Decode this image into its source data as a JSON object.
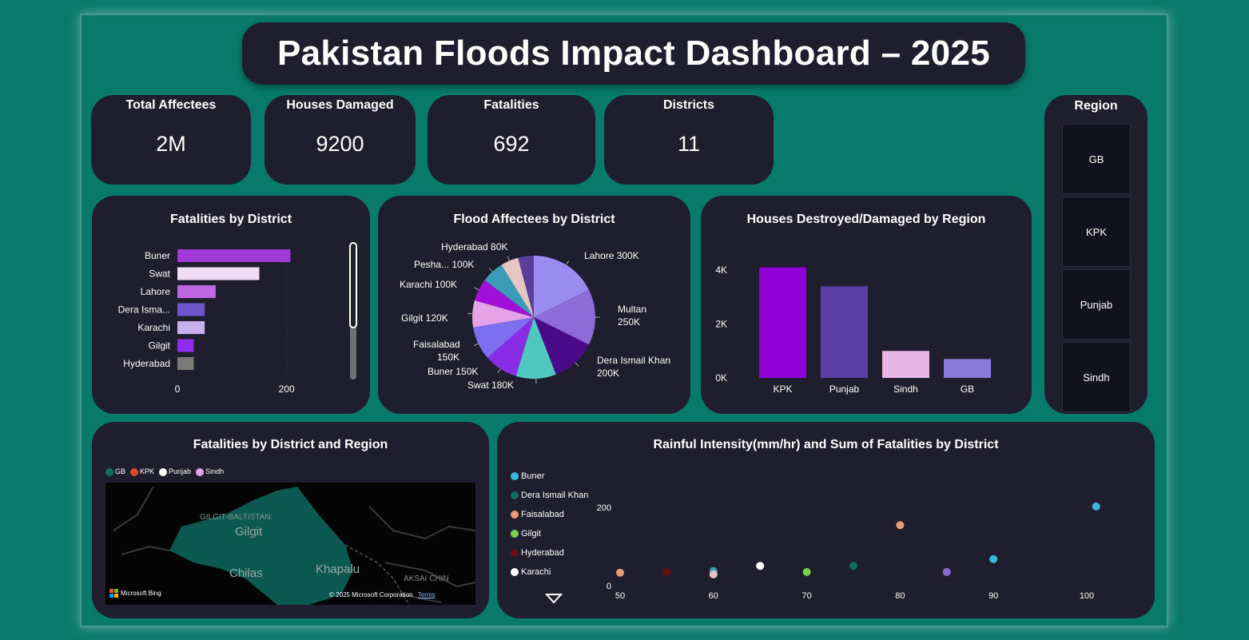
{
  "title": "Pakistan Floods Impact Dashboard – 2025",
  "kpis": [
    {
      "label": "Total Affectees",
      "value": "2M"
    },
    {
      "label": "Houses Damaged",
      "value": "9200"
    },
    {
      "label": "Fatalities",
      "value": "692"
    },
    {
      "label": "Districts",
      "value": "11"
    }
  ],
  "slicer": {
    "title": "Region",
    "items": [
      "GB",
      "KPK",
      "Punjab",
      "Sindh"
    ]
  },
  "map": {
    "title": "Fatalities by District and Region",
    "legend": [
      {
        "label": "GB",
        "color": "#0e6e63"
      },
      {
        "label": "KPK",
        "color": "#e0482c"
      },
      {
        "label": "Punjab",
        "color": "#ffffff"
      },
      {
        "label": "Sindh",
        "color": "#e6a6dc"
      }
    ],
    "labels": {
      "region": "GILGIT-BALTISTAN",
      "gilgit": "Gilgit",
      "chilas": "Chilas",
      "khapalu": "Khapalu",
      "aksai": "AKSAI CHIN"
    },
    "brand": "Microsoft Bing",
    "copyright": "© 2025 Microsoft Corporation",
    "terms": "Terms"
  },
  "chart_data": [
    {
      "type": "bar",
      "orientation": "horizontal",
      "title": "Fatalities by District",
      "categories": [
        "Buner",
        "Swat",
        "Lahore",
        "Dera Isma...",
        "Karachi",
        "Gilgit",
        "Hyderabad"
      ],
      "values": [
        207,
        150,
        70,
        50,
        50,
        30,
        30
      ],
      "colors": [
        "#a03bd8",
        "#f0dcf4",
        "#c067e6",
        "#6f55cc",
        "#c6b0ee",
        "#8f2bef",
        "#7a7a7a"
      ],
      "xlim": [
        0,
        300
      ],
      "xticks": [
        "0",
        "200"
      ],
      "tick_values": [
        0,
        200
      ]
    },
    {
      "type": "pie",
      "title": "Flood Affectees by District",
      "slices": [
        {
          "label": "Lahore 300K",
          "value": 300,
          "color": "#9b8cf2"
        },
        {
          "label": "Multan 250K",
          "value": 250,
          "color": "#8b6cd8"
        },
        {
          "label": "Dera Ismail Khan 200K",
          "value": 200,
          "color": "#4a0a8a"
        },
        {
          "label": "Swat 180K",
          "value": 180,
          "color": "#4fc8c0"
        },
        {
          "label": "Buner 150K",
          "value": 150,
          "color": "#8a2be6"
        },
        {
          "label": "Faisalabad 150K",
          "value": 150,
          "color": "#7c6ff0"
        },
        {
          "label": "Gilgit 120K",
          "value": 120,
          "color": "#e3a3e6"
        },
        {
          "label": "Karachi 100K",
          "value": 100,
          "color": "#a010d8"
        },
        {
          "label": "Pesha... 100K",
          "value": 100,
          "color": "#3a9bb8"
        },
        {
          "label": "Hyderabad 80K",
          "value": 80,
          "color": "#e8c5c5"
        },
        {
          "label": "",
          "value": 70,
          "color": "#5a3e9a"
        }
      ]
    },
    {
      "type": "bar",
      "title": "Houses Destroyed/Damaged by Region",
      "categories": [
        "KPK",
        "Punjab",
        "Sindh",
        "GB"
      ],
      "values": [
        4100,
        3400,
        1000,
        700
      ],
      "colors": [
        "#9000d8",
        "#5a3fa6",
        "#e8b4e6",
        "#8a7ad8"
      ],
      "ylim": [
        0,
        4000
      ],
      "yticks": [
        "0K",
        "2K",
        "4K"
      ],
      "tick_values": [
        0,
        2000,
        4000
      ]
    },
    {
      "type": "scatter",
      "title": "Rainful Intensity(mm/hr) and Sum of Fatalities by District",
      "legend": [
        {
          "label": "Buner",
          "color": "#3cb8e0"
        },
        {
          "label": "Dera Ismail Khan",
          "color": "#0e6e63"
        },
        {
          "label": "Faisalabad",
          "color": "#e89a70"
        },
        {
          "label": "Gilgit",
          "color": "#7ad04a"
        },
        {
          "label": "Hyderabad",
          "color": "#6a0e14"
        },
        {
          "label": "Karachi",
          "color": "#ffffff"
        }
      ],
      "points": [
        {
          "x": 50,
          "y": 10,
          "color": "#e89a70"
        },
        {
          "x": 55,
          "y": 12,
          "color": "#6a0e14"
        },
        {
          "x": 60,
          "y": 15,
          "color": "#3a9bb8"
        },
        {
          "x": 60,
          "y": 5,
          "color": "#e8c5c5"
        },
        {
          "x": 65,
          "y": 30,
          "color": "#ffffff"
        },
        {
          "x": 70,
          "y": 12,
          "color": "#7ad04a"
        },
        {
          "x": 75,
          "y": 30,
          "color": "#0e6e63"
        },
        {
          "x": 80,
          "y": 150,
          "color": "#e89a70"
        },
        {
          "x": 85,
          "y": 12,
          "color": "#8a6ad0"
        },
        {
          "x": 90,
          "y": 50,
          "color": "#3cb8e0"
        },
        {
          "x": 101,
          "y": 205,
          "color": "#3cb8e0"
        }
      ],
      "xlim": [
        50,
        100
      ],
      "xticks": [
        "50",
        "60",
        "70",
        "80",
        "90",
        "100"
      ],
      "xtick_values": [
        50,
        60,
        70,
        80,
        90,
        100
      ],
      "yticks": [
        "0",
        "200"
      ],
      "ytick_values": [
        0,
        200
      ]
    }
  ]
}
